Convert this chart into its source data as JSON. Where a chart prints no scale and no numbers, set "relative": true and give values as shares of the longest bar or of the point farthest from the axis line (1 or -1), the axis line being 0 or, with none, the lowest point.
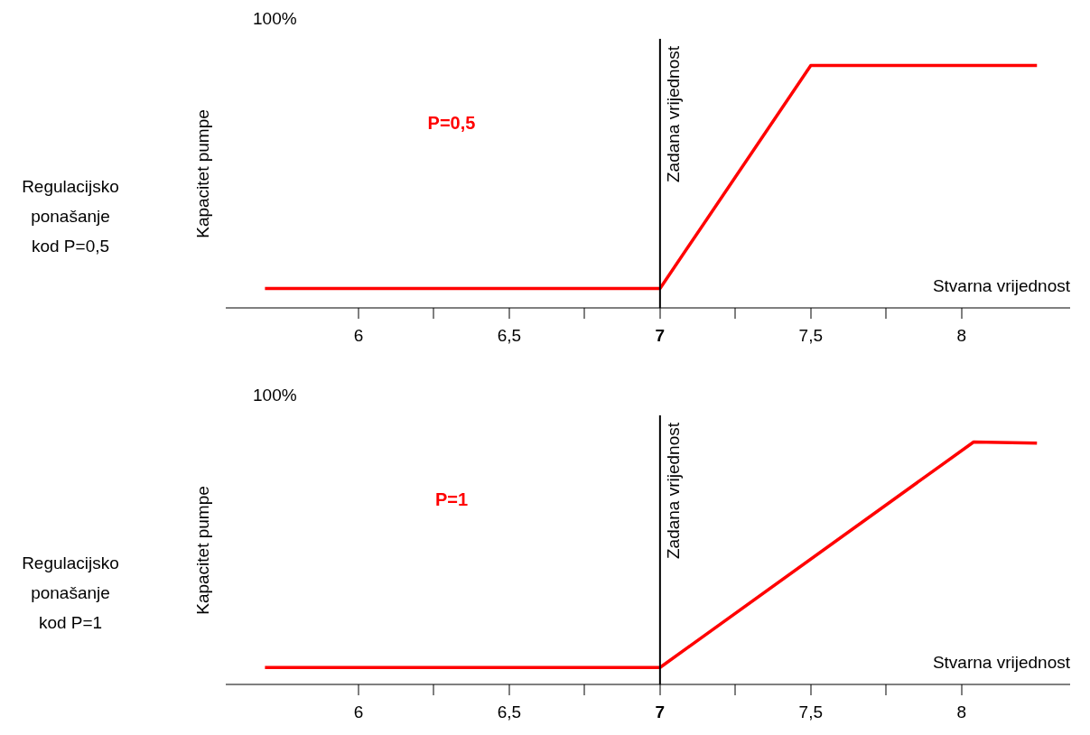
{
  "chart_data": [
    {
      "type": "line",
      "xlabel": "Stvarna vrijednost",
      "ylabel": "Kapacitet pumpe",
      "relative": true,
      "annotations": [
        "100%",
        "P=0,5",
        "Regulacijsko\nponašanje\nkod P=0,5"
      ],
      "xlim": [
        5.56,
        8.36
      ],
      "xticks": [
        {
          "value": 6,
          "label": "6"
        },
        {
          "value": 6.25,
          "label": null
        },
        {
          "value": 6.5,
          "label": "6,5"
        },
        {
          "value": 6.75,
          "label": null
        },
        {
          "value": 7,
          "label": "7"
        },
        {
          "value": 7.25,
          "label": null
        },
        {
          "value": 7.5,
          "label": "7,5"
        },
        {
          "value": 7.75,
          "label": null
        },
        {
          "value": 8,
          "label": "8"
        }
      ],
      "series": [
        {
          "color": "#ff0000",
          "x": [
            5.69,
            7,
            7.5,
            8.25
          ],
          "values": [
            0.08,
            0.08,
            1,
            1
          ]
        }
      ],
      "ref_lines": [
        {
          "axis": "x",
          "value": 7,
          "label": "Zadana vrijednost",
          "color": "#000000"
        }
      ],
      "grid": false,
      "legend": false,
      "marker": "none",
      "line_style": "solid"
    },
    {
      "type": "line",
      "xlabel": "Stvarna vrijednost",
      "ylabel": "Kapacitet pumpe",
      "relative": true,
      "annotations": [
        "100%",
        "P=1",
        "Regulacijsko\nponašanje\nkod P=1"
      ],
      "xlim": [
        5.56,
        8.36
      ],
      "xticks": [
        {
          "value": 6,
          "label": "6"
        },
        {
          "value": 6.25,
          "label": null
        },
        {
          "value": 6.5,
          "label": "6,5"
        },
        {
          "value": 6.75,
          "label": null
        },
        {
          "value": 7,
          "label": "7"
        },
        {
          "value": 7.25,
          "label": null
        },
        {
          "value": 7.5,
          "label": "7,5"
        },
        {
          "value": 7.75,
          "label": null
        },
        {
          "value": 8,
          "label": "8"
        }
      ],
      "series": [
        {
          "color": "#ff0000",
          "x": [
            5.69,
            7,
            8.04,
            8.25
          ],
          "values": [
            0.07,
            0.07,
            1,
            0.995
          ]
        }
      ],
      "ref_lines": [
        {
          "axis": "x",
          "value": 7,
          "label": "Zadana vrijednost",
          "color": "#000000"
        }
      ],
      "grid": false,
      "legend": false,
      "marker": "none",
      "line_style": "solid"
    }
  ]
}
